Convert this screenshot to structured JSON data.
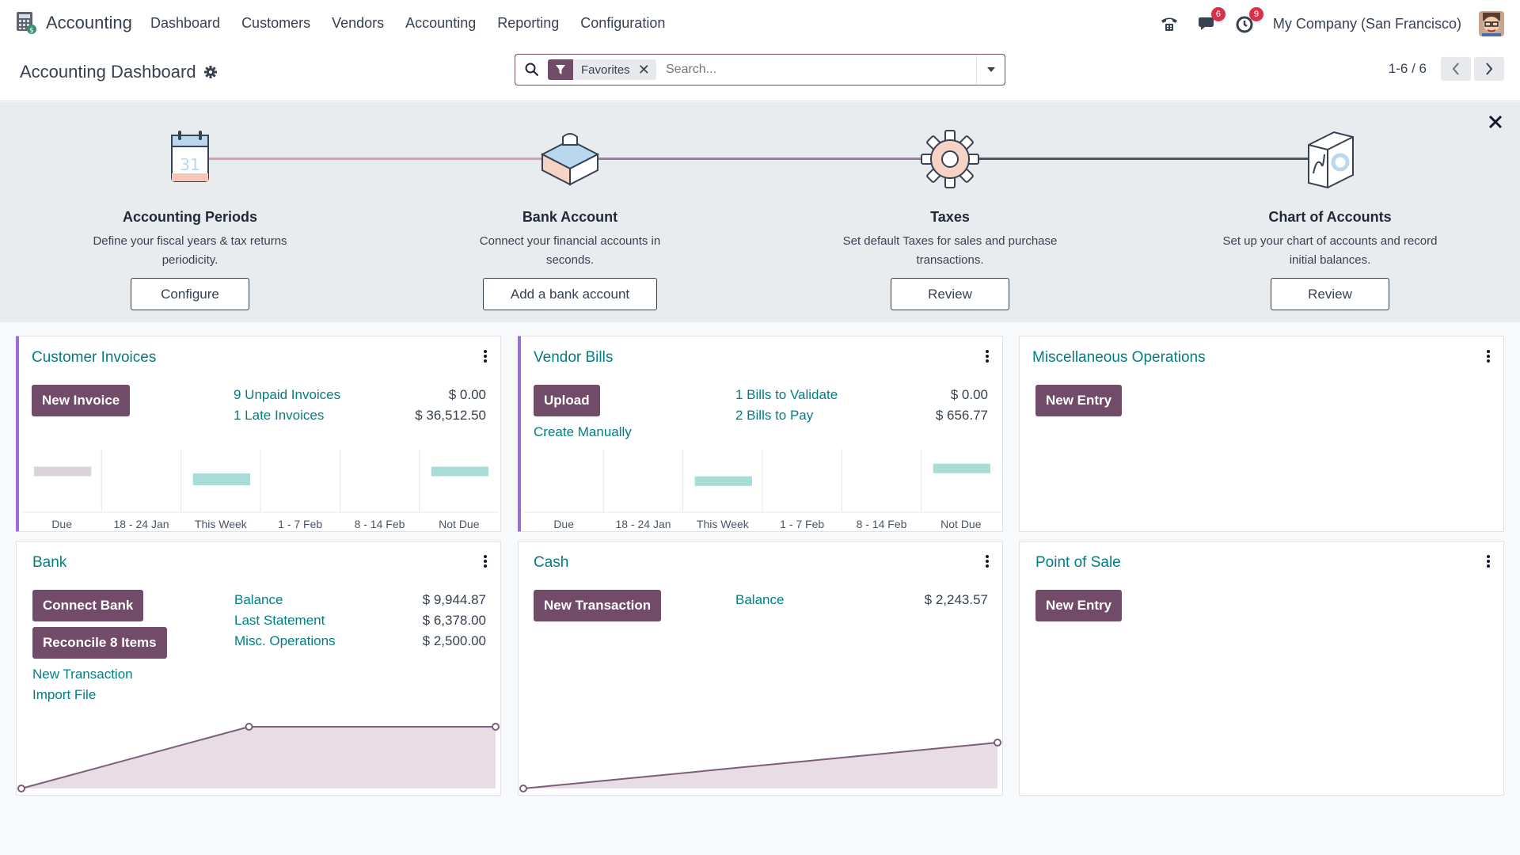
{
  "navbar": {
    "app_name": "Accounting",
    "menu": [
      "Dashboard",
      "Customers",
      "Vendors",
      "Accounting",
      "Reporting",
      "Configuration"
    ],
    "messages_badge": "6",
    "activities_badge": "9",
    "company": "My Company (San Francisco)"
  },
  "control": {
    "title": "Accounting Dashboard",
    "facet_label": "Favorites",
    "search_placeholder": "Search...",
    "pager": "1-6 / 6"
  },
  "onboarding": {
    "steps": [
      {
        "title": "Accounting Periods",
        "desc1": "Define your fiscal years & tax returns",
        "desc2": "periodicity.",
        "button": "Configure"
      },
      {
        "title": "Bank Account",
        "desc1": "Connect your financial accounts in",
        "desc2": "seconds.",
        "button": "Add a bank account"
      },
      {
        "title": "Taxes",
        "desc1": "Set default Taxes for sales and purchase",
        "desc2": "transactions.",
        "button": "Review"
      },
      {
        "title": "Chart of Accounts",
        "desc1": "Set up your chart of accounts and record",
        "desc2": "initial balances.",
        "button": "Review"
      }
    ]
  },
  "cards": {
    "customer_invoices": {
      "title": "Customer Invoices",
      "button": "New Invoice",
      "lines": [
        {
          "label": "9 Unpaid Invoices",
          "amount": "$ 0.00"
        },
        {
          "label": "1 Late Invoices",
          "amount": "$ 36,512.50"
        }
      ],
      "chart_data": {
        "type": "bar",
        "categories": [
          "Due",
          "18 - 24 Jan",
          "This Week",
          "1 - 7 Feb",
          "8 - 14 Feb",
          "Not Due"
        ],
        "values": [
          0.3,
          0,
          0.6,
          0,
          0,
          0.3
        ],
        "colors": [
          "#dcd2d9",
          "#a8dcd9",
          "#a8dcd9",
          "#a8dcd9",
          "#a8dcd9",
          "#a8dcd9"
        ]
      }
    },
    "vendor_bills": {
      "title": "Vendor Bills",
      "button": "Upload",
      "link_create": "Create Manually",
      "lines": [
        {
          "label": "1 Bills to Validate",
          "amount": "$ 0.00"
        },
        {
          "label": "2 Bills to Pay",
          "amount": "$ 656.77"
        }
      ],
      "chart_data": {
        "type": "bar",
        "categories": [
          "Due",
          "18 - 24 Jan",
          "This Week",
          "1 - 7 Feb",
          "8 - 14 Feb",
          "Not Due"
        ],
        "values": [
          0,
          0,
          0.45,
          0,
          0,
          0.45
        ],
        "colors": [
          "#a8dcd9",
          "#a8dcd9",
          "#a8dcd9",
          "#a8dcd9",
          "#a8dcd9",
          "#a8dcd9"
        ]
      }
    },
    "misc": {
      "title": "Miscellaneous Operations",
      "button": "New Entry"
    },
    "bank": {
      "title": "Bank",
      "button_connect": "Connect Bank",
      "button_reconcile": "Reconcile 8 Items",
      "link_new": "New Transaction",
      "link_import": "Import File",
      "lines": [
        {
          "label": "Balance",
          "amount": "$ 9,944.87"
        },
        {
          "label": "Last Statement",
          "amount": "$ 6,378.00"
        },
        {
          "label": "Misc. Operations",
          "amount": "$ 2,500.00"
        }
      ],
      "chart_data": {
        "type": "area",
        "values": [
          0,
          1,
          1
        ]
      }
    },
    "cash": {
      "title": "Cash",
      "button": "New Transaction",
      "lines": [
        {
          "label": "Balance",
          "amount": "$ 2,243.57"
        }
      ],
      "chart_data": {
        "type": "area",
        "values": [
          0,
          1
        ]
      }
    },
    "pos": {
      "title": "Point of Sale",
      "button": "New Entry"
    }
  }
}
